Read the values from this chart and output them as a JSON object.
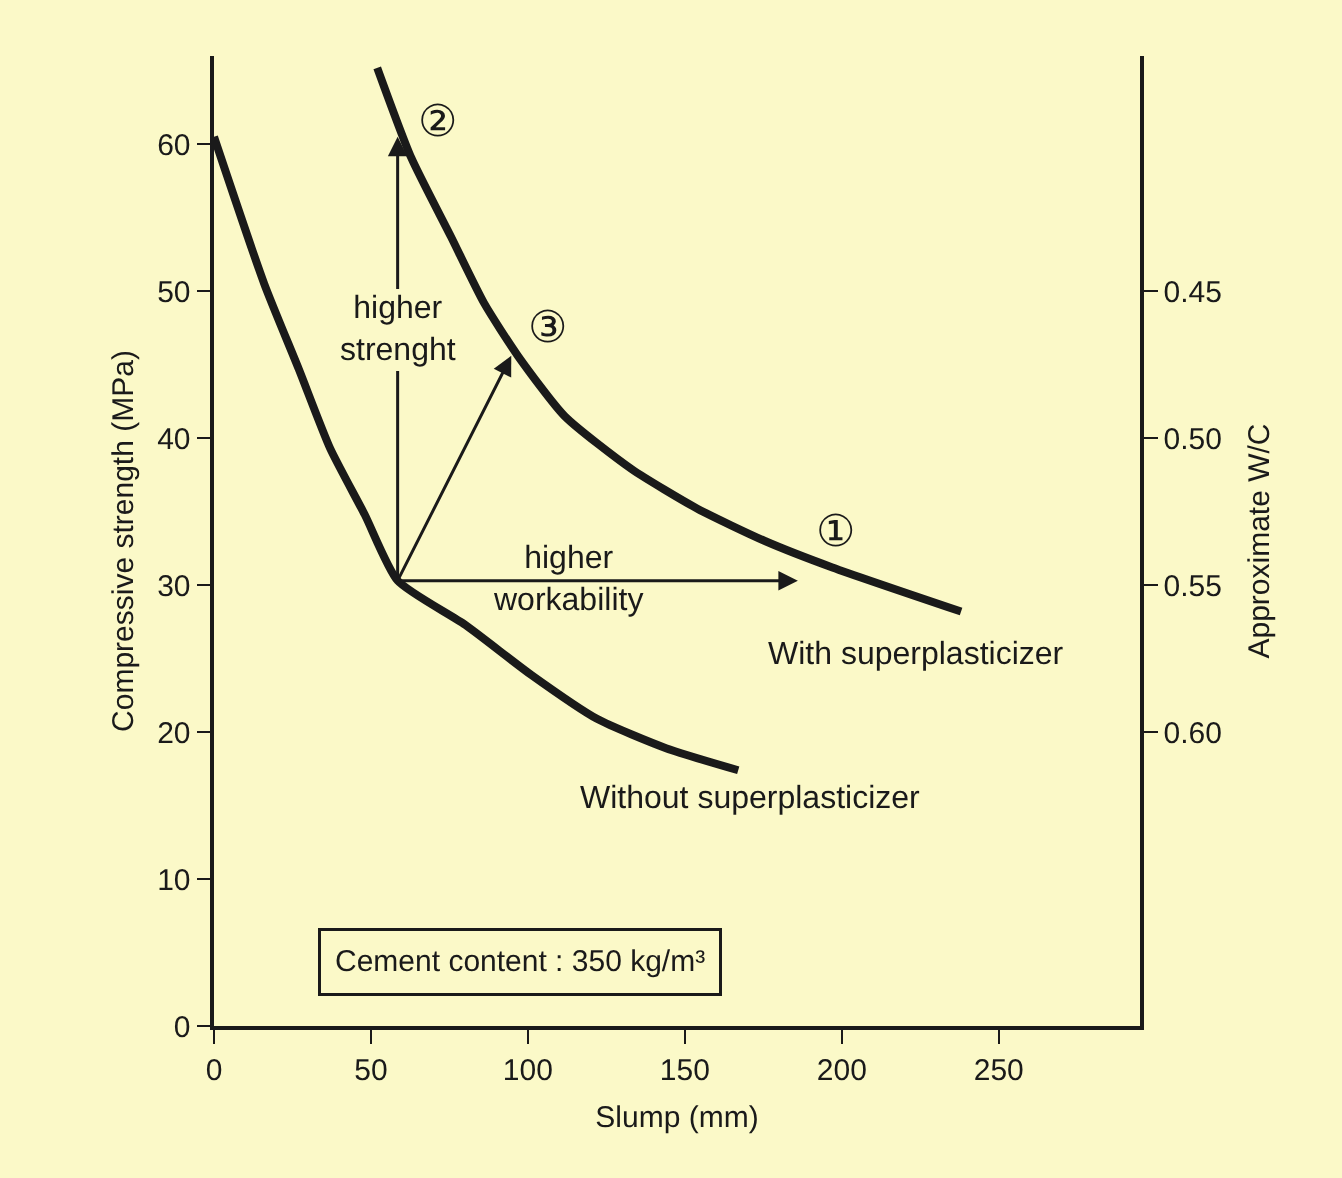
{
  "chart_data": {
    "type": "line",
    "xlabel": "Slump (mm)",
    "ylabel": "Compressive strength (MPa)",
    "y2label": "Approximate W/C",
    "xlim": [
      0,
      295
    ],
    "xticks": [
      0,
      50,
      100,
      150,
      200,
      250
    ],
    "ylim": [
      0,
      66
    ],
    "yticks": [
      0,
      10,
      20,
      30,
      40,
      50,
      60
    ],
    "y2lim": [
      0.7,
      0.37
    ],
    "y2ticks": [
      {
        "value": 0.45,
        "label": "0.45"
      },
      {
        "value": 0.5,
        "label": "0.50"
      },
      {
        "value": 0.55,
        "label": "0.55"
      },
      {
        "value": 0.6,
        "label": "0.60"
      }
    ],
    "series": [
      {
        "color": "#1a1a1a",
        "x": [
          0,
          16,
          27,
          37,
          48,
          58.5,
          80,
          101,
          122,
          144,
          167
        ],
        "values": [
          60.5,
          50.5,
          44.7,
          39.3,
          34.8,
          30.3,
          27.3,
          23.9,
          20.9,
          18.9,
          17.4
        ]
      },
      {
        "color": "#1a1a1a",
        "x": [
          52,
          62.8,
          75.5,
          86,
          96.8,
          111.7,
          133,
          154,
          175.5,
          197,
          238
        ],
        "values": [
          65.2,
          59.1,
          53.7,
          49.2,
          45.6,
          41.5,
          37.9,
          35.2,
          33,
          31.2,
          28.2
        ]
      }
    ],
    "annotations": [
      {
        "text": "②",
        "x": 58.5,
        "y": 60.5
      },
      {
        "text": "③",
        "x": 94.7,
        "y": 45.6
      },
      {
        "text": "①",
        "x": 197,
        "y": 31.2
      },
      "higher strenght",
      "higher workability",
      "With superplasticizer",
      "Without superplasticizer",
      "Cement content : 350 kg/m³"
    ],
    "grid": false,
    "marker": "none",
    "line_style": "solid"
  }
}
